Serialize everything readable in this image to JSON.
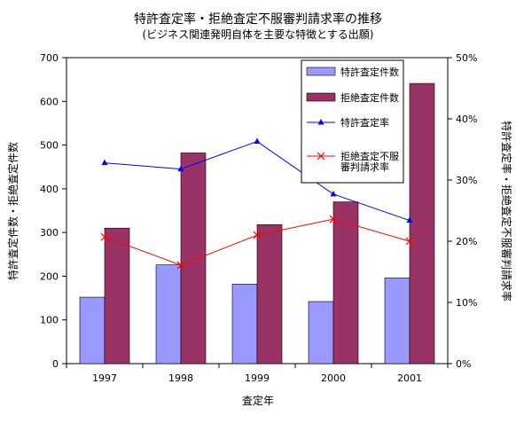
{
  "chart_data": {
    "type": "bar",
    "title": "特許査定率・拒絶査定不服審判請求率の推移",
    "subtitle": "(ビジネス関連発明自体を主要な特徴とする出願)",
    "xlabel": "査定年",
    "ylabel_left": "特許査定件数・拒絶査定件数",
    "ylabel_right": "特許査定率・拒絶査定不服審判請求率",
    "categories": [
      "1997",
      "1998",
      "1999",
      "2000",
      "2001"
    ],
    "ylim_left": [
      0,
      700
    ],
    "yticks_left": [
      "0",
      "100",
      "200",
      "300",
      "400",
      "500",
      "600",
      "700"
    ],
    "ylim_right": [
      0,
      50
    ],
    "yticks_right": [
      "0%",
      "10%",
      "20%",
      "30%",
      "40%",
      "50%"
    ],
    "grid": false,
    "legend_position": "top-right",
    "series": [
      {
        "name": "特許査定件数",
        "kind": "bar",
        "axis": "left",
        "color": "#9999ff",
        "values": [
          152,
          226,
          182,
          142,
          196
        ]
      },
      {
        "name": "拒絶査定件数",
        "kind": "bar",
        "axis": "left",
        "color": "#993366",
        "values": [
          310,
          482,
          318,
          370,
          641
        ]
      },
      {
        "name": "特許査定率",
        "kind": "line",
        "axis": "right",
        "color": "#0000ff",
        "marker": "triangle",
        "values": [
          32.8,
          31.8,
          36.3,
          27.7,
          23.4
        ]
      },
      {
        "name": "拒絶査定不服審判請求率",
        "legend_lines": [
          "拒絶査定不服",
          "審判請求率"
        ],
        "kind": "line",
        "axis": "right",
        "color": "#ff0000",
        "marker": "x",
        "values": [
          20.7,
          16.1,
          21.0,
          23.6,
          20.0
        ]
      }
    ]
  }
}
